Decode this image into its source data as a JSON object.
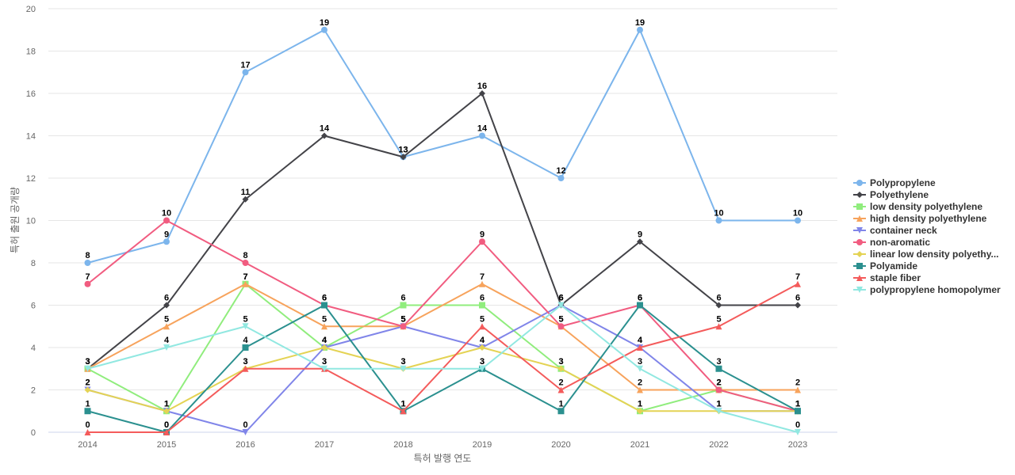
{
  "chart_data": {
    "type": "line",
    "title": "",
    "xlabel": "특허 발행 연도",
    "ylabel": "특허 출원 공개량",
    "x": [
      "2014",
      "2015",
      "2016",
      "2017",
      "2018",
      "2019",
      "2020",
      "2021",
      "2022",
      "2023"
    ],
    "ylim": [
      0,
      20
    ],
    "yticks": [
      0,
      2,
      4,
      6,
      8,
      10,
      12,
      14,
      16,
      18,
      20
    ],
    "grid": true,
    "legend_position": "right",
    "series": [
      {
        "name": "Polypropylene",
        "color": "#7cb5ec",
        "marker": "circle",
        "values": [
          8,
          9,
          17,
          19,
          13,
          14,
          12,
          19,
          10,
          10
        ]
      },
      {
        "name": "Polyethylene",
        "color": "#434348",
        "marker": "diamond",
        "values": [
          3,
          6,
          11,
          14,
          13,
          16,
          6,
          9,
          6,
          6
        ]
      },
      {
        "name": "low density polyethylene",
        "color": "#90ed7d",
        "marker": "square",
        "values": [
          3,
          1,
          7,
          4,
          6,
          6,
          3,
          1,
          2,
          1
        ]
      },
      {
        "name": "high density polyethylene",
        "color": "#f7a35c",
        "marker": "triangle",
        "values": [
          3,
          5,
          7,
          5,
          5,
          7,
          5,
          2,
          2,
          2
        ]
      },
      {
        "name": "container neck",
        "color": "#8085e9",
        "marker": "triangle-down",
        "values": [
          2,
          1,
          0,
          4,
          5,
          4,
          6,
          4,
          1,
          1
        ]
      },
      {
        "name": "non-aromatic",
        "color": "#f15c80",
        "marker": "circle",
        "values": [
          7,
          10,
          8,
          6,
          5,
          9,
          5,
          6,
          2,
          1
        ]
      },
      {
        "name": "linear low density polyethy...",
        "color": "#e4d354",
        "marker": "diamond",
        "values": [
          2,
          1,
          3,
          4,
          3,
          4,
          3,
          1,
          1,
          1
        ]
      },
      {
        "name": "Polyamide",
        "color": "#2b908f",
        "marker": "square",
        "values": [
          1,
          0,
          4,
          6,
          1,
          3,
          1,
          6,
          3,
          1
        ]
      },
      {
        "name": "staple fiber",
        "color": "#f45b5b",
        "marker": "triangle",
        "values": [
          0,
          0,
          3,
          3,
          1,
          5,
          2,
          4,
          5,
          7
        ]
      },
      {
        "name": "polypropylene homopolymer",
        "color": "#91e8e1",
        "marker": "triangle-down",
        "values": [
          3,
          4,
          5,
          3,
          3,
          3,
          6,
          3,
          1,
          0
        ]
      }
    ]
  }
}
